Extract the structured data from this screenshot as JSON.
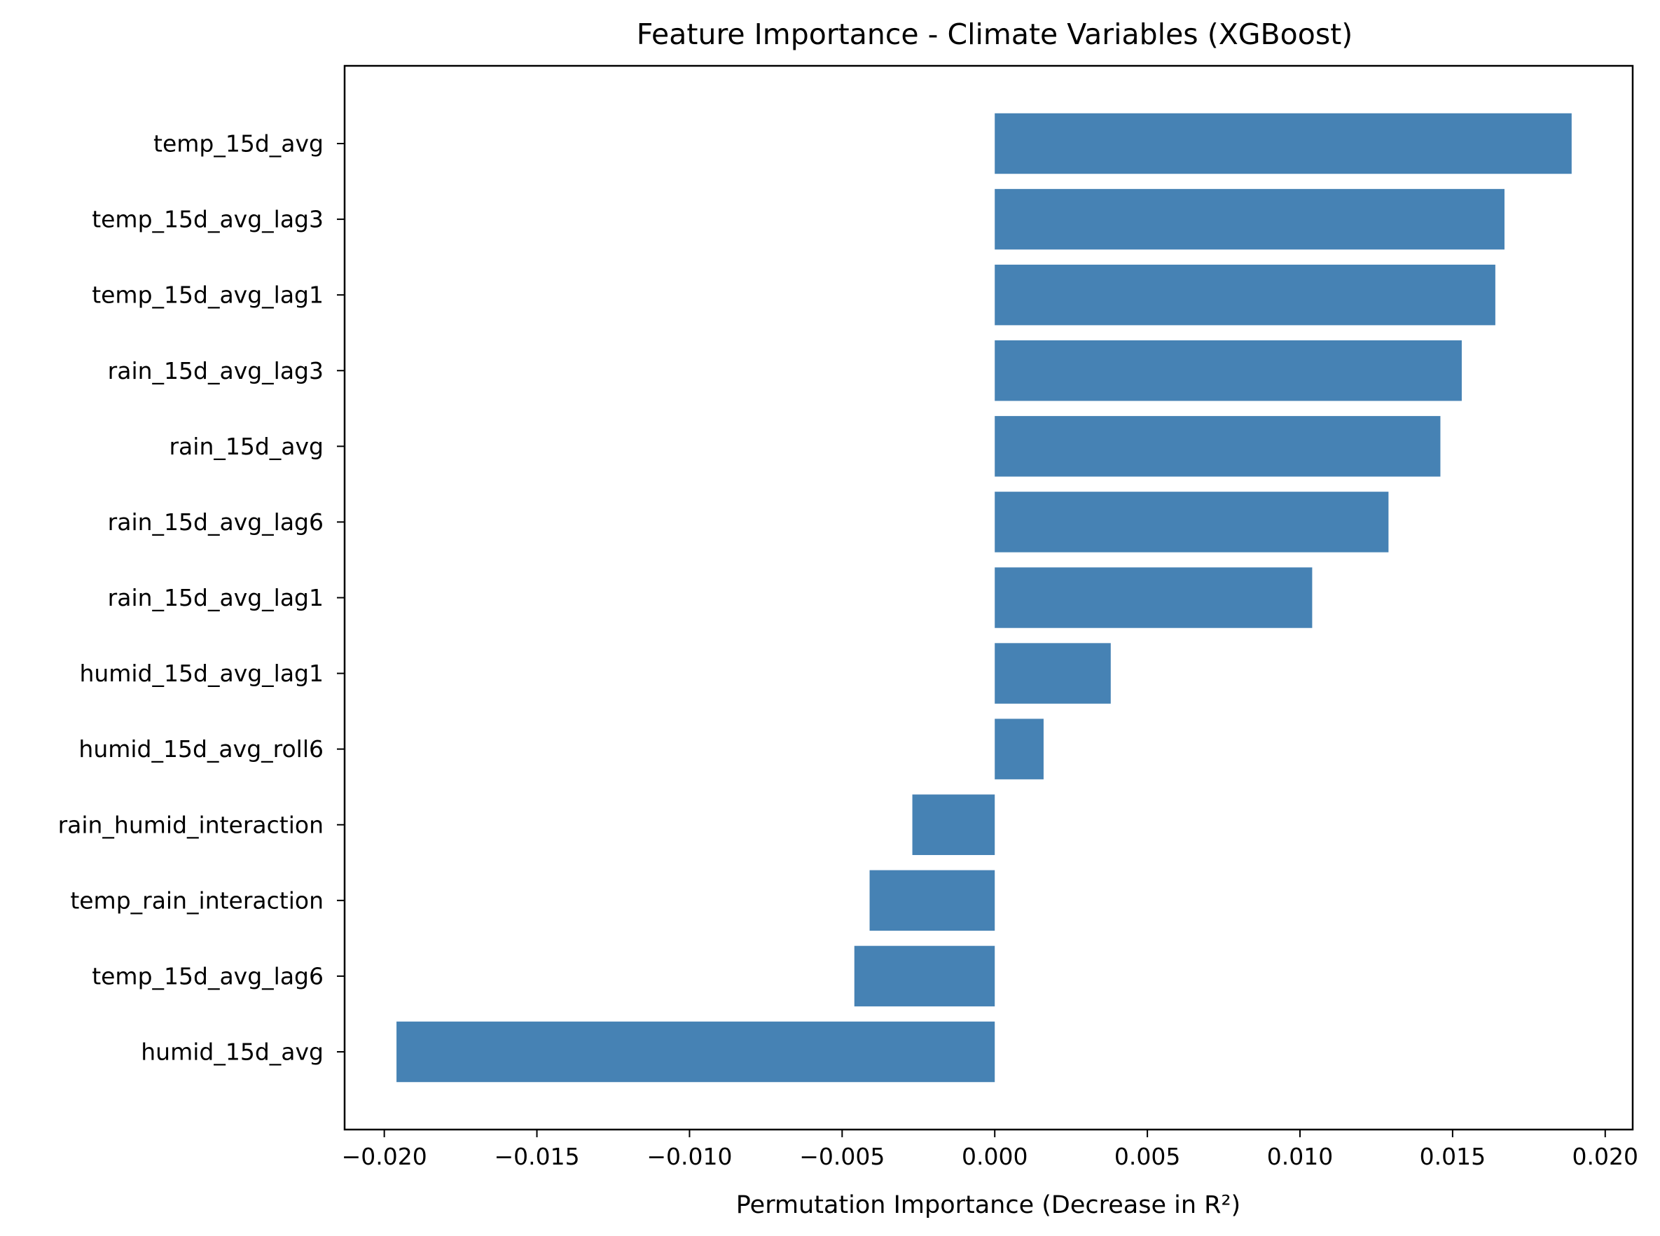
{
  "chart_data": {
    "type": "bar",
    "orientation": "horizontal",
    "title": "Feature Importance - Climate Variables (XGBoost)",
    "xlabel": "Permutation Importance (Decrease in R²)",
    "ylabel": "",
    "xlim": [
      -0.0213,
      0.0209
    ],
    "xticks": [
      -0.02,
      -0.015,
      -0.01,
      -0.005,
      0.0,
      0.005,
      0.01,
      0.015,
      0.02
    ],
    "xtick_labels": [
      "−0.020",
      "−0.015",
      "−0.010",
      "−0.005",
      "0.000",
      "0.005",
      "0.010",
      "0.015",
      "0.020"
    ],
    "bar_color": "#4682b4",
    "grid": false,
    "legend": "none",
    "categories": [
      "temp_15d_avg",
      "temp_15d_avg_lag3",
      "temp_15d_avg_lag1",
      "rain_15d_avg_lag3",
      "rain_15d_avg",
      "rain_15d_avg_lag6",
      "rain_15d_avg_lag1",
      "humid_15d_avg_lag1",
      "humid_15d_avg_roll6",
      "rain_humid_interaction",
      "temp_rain_interaction",
      "temp_15d_avg_lag6",
      "humid_15d_avg"
    ],
    "values": [
      0.0189,
      0.0167,
      0.0164,
      0.0153,
      0.0146,
      0.0129,
      0.0104,
      0.0038,
      0.0016,
      -0.0027,
      -0.0041,
      -0.0046,
      -0.0196
    ]
  }
}
